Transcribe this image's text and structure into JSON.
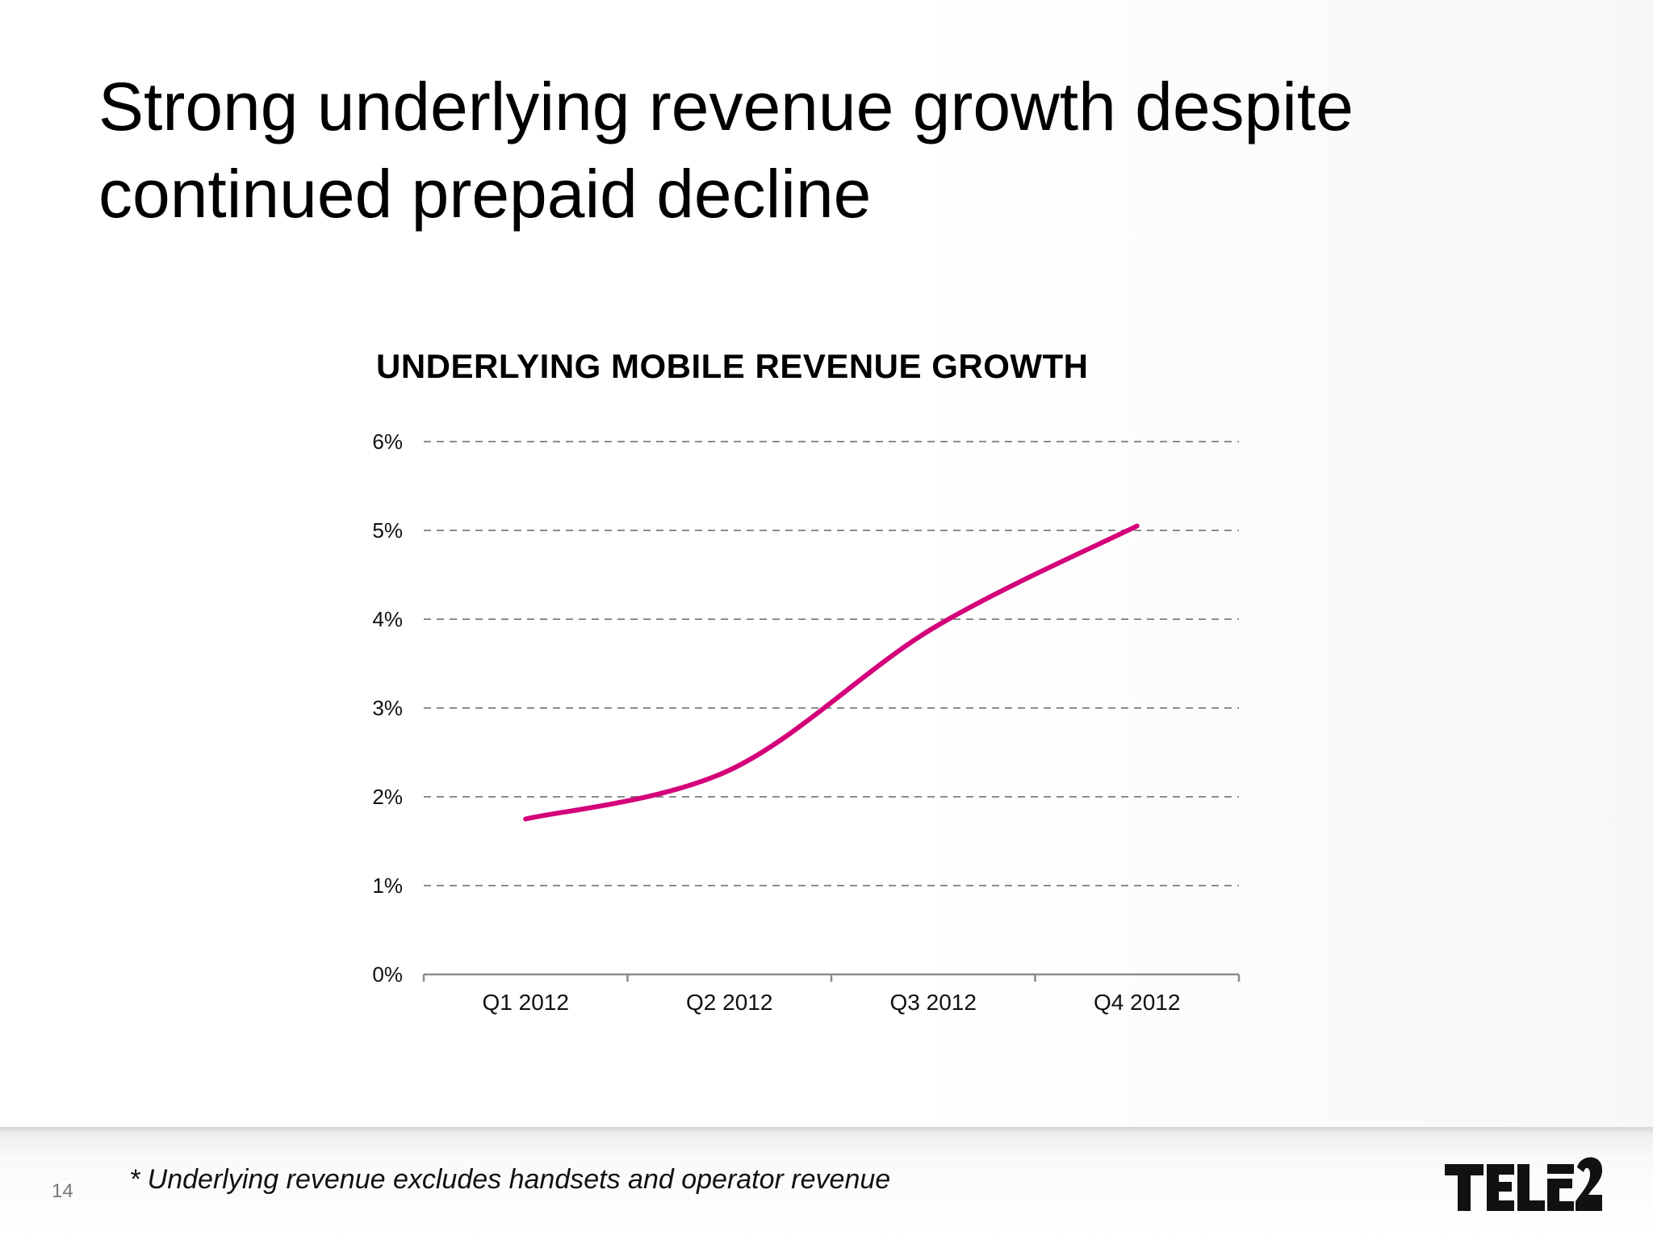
{
  "slide": {
    "title_line1": "Strong underlying revenue growth despite",
    "title_line2": "continued prepaid decline",
    "page_number": "14",
    "footnote": "* Underlying revenue excludes handsets and operator revenue",
    "logo_text": "TELE2"
  },
  "chart_data": {
    "type": "line",
    "title": "UNDERLYING MOBILE REVENUE GROWTH",
    "categories": [
      "Q1 2012",
      "Q2 2012",
      "Q3 2012",
      "Q4 2012"
    ],
    "series": [
      {
        "values": [
          1.75,
          2.3,
          3.9,
          5.05
        ],
        "color": "#d4007a"
      }
    ],
    "ylim": [
      0,
      6
    ],
    "yticks": [
      0,
      1,
      2,
      3,
      4,
      5,
      6
    ],
    "ytick_labels": [
      "0%",
      "1%",
      "2%",
      "3%",
      "4%",
      "5%",
      "6%"
    ],
    "grid": true,
    "grid_style": "dashed",
    "xlabel": "",
    "ylabel": ""
  }
}
